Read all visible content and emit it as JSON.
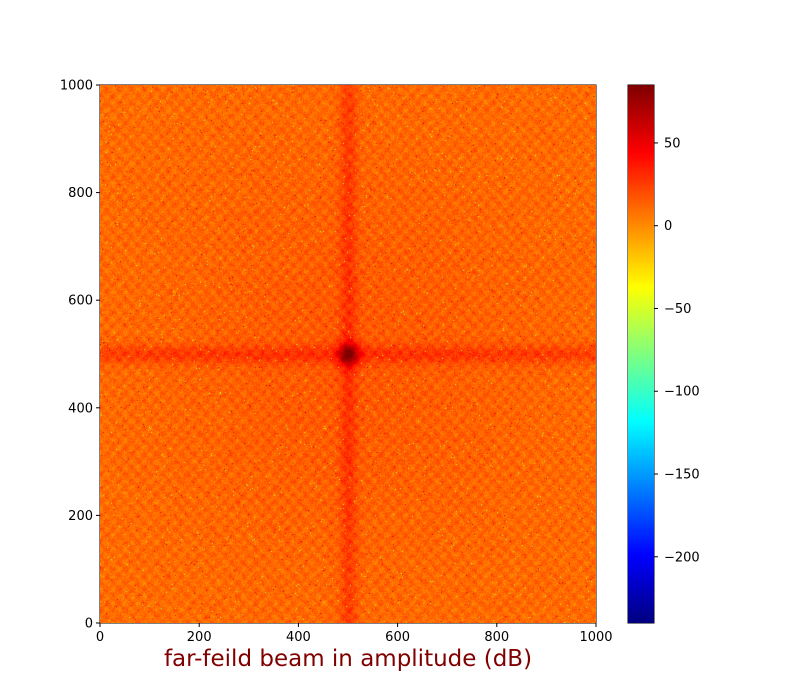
{
  "chart_data": {
    "type": "heatmap",
    "title": "far-feild beam in amplitude (dB)",
    "title_color": "#800000",
    "xlabel": "",
    "ylabel": "",
    "xlim": [
      0,
      1000
    ],
    "ylim": [
      0,
      1000
    ],
    "x_ticks": [
      "0",
      "200",
      "400",
      "600",
      "800",
      "1000"
    ],
    "y_ticks": [
      "0",
      "200",
      "400",
      "600",
      "800",
      "1000"
    ],
    "colormap": "jet",
    "colorbar": {
      "range": [
        -240,
        85
      ],
      "ticks": [
        "50",
        "0",
        "−50",
        "−100",
        "−150",
        "−200"
      ],
      "tick_values": [
        50,
        0,
        -50,
        -100,
        -150,
        -200
      ],
      "placement": "right"
    },
    "pattern": {
      "background_level": 10,
      "center_peak": 80,
      "cross_x": 500,
      "cross_y": 500,
      "cross_level": 35
    }
  }
}
